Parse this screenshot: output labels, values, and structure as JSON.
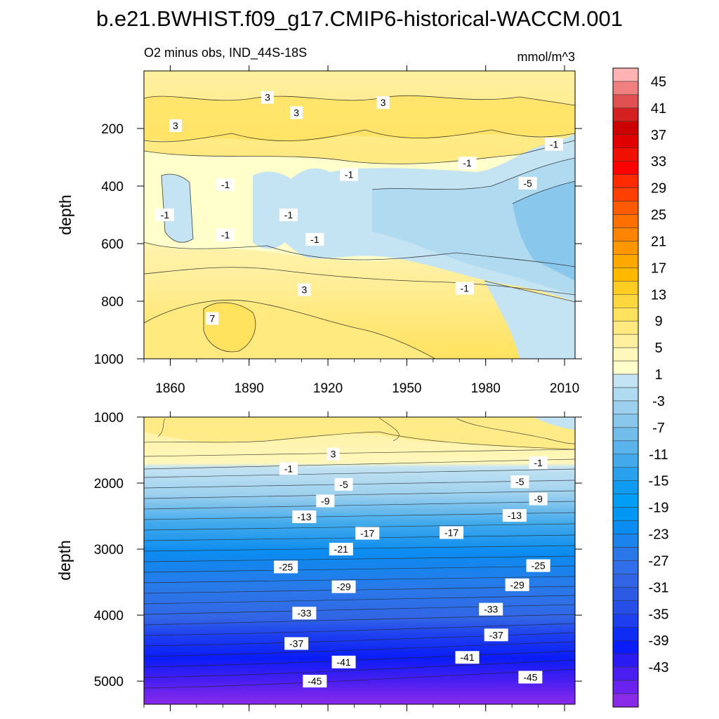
{
  "figure": {
    "title": "b.e21.BWHIST.f09_g17.CMIP6-historical-WACCM.001",
    "subtitle_left": "O2 minus obs, IND_44S-18S",
    "subtitle_right": "mmol/m^3"
  },
  "colorbar": {
    "labels": [
      "45",
      "41",
      "37",
      "33",
      "29",
      "25",
      "21",
      "17",
      "13",
      "9",
      "5",
      "1",
      "-3",
      "-7",
      "-11",
      "-15",
      "-19",
      "-23",
      "-27",
      "-31",
      "-35",
      "-39",
      "-43"
    ],
    "colors": [
      "#ffb3b3",
      "#f08080",
      "#e05050",
      "#d42020",
      "#cc0000",
      "#e00000",
      "#f01000",
      "#ff0000",
      "#ff2a00",
      "#ff4000",
      "#ff5a00",
      "#ff7000",
      "#ff8400",
      "#ff9800",
      "#ffa800",
      "#ffba00",
      "#ffcc22",
      "#ffd840",
      "#ffe25e",
      "#ffea80",
      "#fff0a0",
      "#fff7bb",
      "#ffffcc",
      "#c4e3f3",
      "#b0daf0",
      "#9dd0ee",
      "#8ac7ec",
      "#72bdea",
      "#5ab3ea",
      "#42aaeb",
      "#2aa1ee",
      "#109bf2",
      "#009ef5",
      "#0097f4",
      "#0b8cf0",
      "#1c82ec",
      "#2a78e8",
      "#306eea",
      "#3265e5",
      "#2c5ae5",
      "#264fe8",
      "#1e3fef",
      "#0f2cf5",
      "#0a1cf8",
      "#2a1cf0",
      "#4a1ef0",
      "#6a22ee",
      "#8a2bea"
    ]
  },
  "chart_data": [
    {
      "type": "heatmap",
      "panel": "upper",
      "title": "O2 minus obs, IND_44S-18S",
      "units": "mmol/m^3",
      "xlabel": "",
      "ylabel": "depth",
      "xlim": [
        1850,
        2014
      ],
      "ylim": [
        1000,
        0
      ],
      "x_ticks": [
        1860,
        1890,
        1920,
        1950,
        1980,
        2010
      ],
      "y_ticks": [
        200,
        400,
        600,
        800,
        1000
      ],
      "contour_labels": [
        {
          "text": "3",
          "x": 1897,
          "y": 92
        },
        {
          "text": "3",
          "x": 1908,
          "y": 145
        },
        {
          "text": "3",
          "x": 1941,
          "y": 110
        },
        {
          "text": "3",
          "x": 1862,
          "y": 190
        },
        {
          "text": "-1",
          "x": 1881,
          "y": 395
        },
        {
          "text": "-1",
          "x": 1928,
          "y": 360
        },
        {
          "text": "-1",
          "x": 1973,
          "y": 320
        },
        {
          "text": "-1",
          "x": 2006,
          "y": 255
        },
        {
          "text": "-5",
          "x": 1996,
          "y": 390
        },
        {
          "text": "-1",
          "x": 1858,
          "y": 500
        },
        {
          "text": "-1",
          "x": 1905,
          "y": 500
        },
        {
          "text": "-1",
          "x": 1881,
          "y": 570
        },
        {
          "text": "-1",
          "x": 1915,
          "y": 585
        },
        {
          "text": "3",
          "x": 1911,
          "y": 760
        },
        {
          "text": "-1",
          "x": 1972,
          "y": 755
        },
        {
          "text": "7",
          "x": 1876,
          "y": 860
        }
      ]
    },
    {
      "type": "heatmap",
      "panel": "lower",
      "title": "",
      "xlabel": "",
      "ylabel": "depth",
      "xlim": [
        1850,
        2014
      ],
      "ylim": [
        5350,
        1000
      ],
      "x_ticks": [
        1860,
        1890,
        1920,
        1950,
        1980,
        2010
      ],
      "y_ticks": [
        1000,
        2000,
        3000,
        4000,
        5000
      ],
      "contour_labels": [
        {
          "text": "3",
          "x": 1922,
          "y": 1560
        },
        {
          "text": "-1",
          "x": 1905,
          "y": 1780
        },
        {
          "text": "-1",
          "x": 2000,
          "y": 1690
        },
        {
          "text": "-5",
          "x": 1926,
          "y": 2020
        },
        {
          "text": "-5",
          "x": 1993,
          "y": 1980
        },
        {
          "text": "-9",
          "x": 1919,
          "y": 2270
        },
        {
          "text": "-9",
          "x": 2000,
          "y": 2240
        },
        {
          "text": "-13",
          "x": 1911,
          "y": 2510
        },
        {
          "text": "-13",
          "x": 1991,
          "y": 2490
        },
        {
          "text": "-17",
          "x": 1935,
          "y": 2760
        },
        {
          "text": "-17",
          "x": 1967,
          "y": 2750
        },
        {
          "text": "-21",
          "x": 1925,
          "y": 3000
        },
        {
          "text": "-25",
          "x": 1904,
          "y": 3270
        },
        {
          "text": "-25",
          "x": 2000,
          "y": 3250
        },
        {
          "text": "-29",
          "x": 1926,
          "y": 3570
        },
        {
          "text": "-29",
          "x": 1992,
          "y": 3540
        },
        {
          "text": "-33",
          "x": 1911,
          "y": 3970
        },
        {
          "text": "-33",
          "x": 1982,
          "y": 3910
        },
        {
          "text": "-37",
          "x": 1908,
          "y": 4430
        },
        {
          "text": "-37",
          "x": 1984,
          "y": 4300
        },
        {
          "text": "-41",
          "x": 1926,
          "y": 4710
        },
        {
          "text": "-41",
          "x": 1973,
          "y": 4640
        },
        {
          "text": "-45",
          "x": 1915,
          "y": 5000
        },
        {
          "text": "-45",
          "x": 1997,
          "y": 4940
        }
      ]
    }
  ]
}
